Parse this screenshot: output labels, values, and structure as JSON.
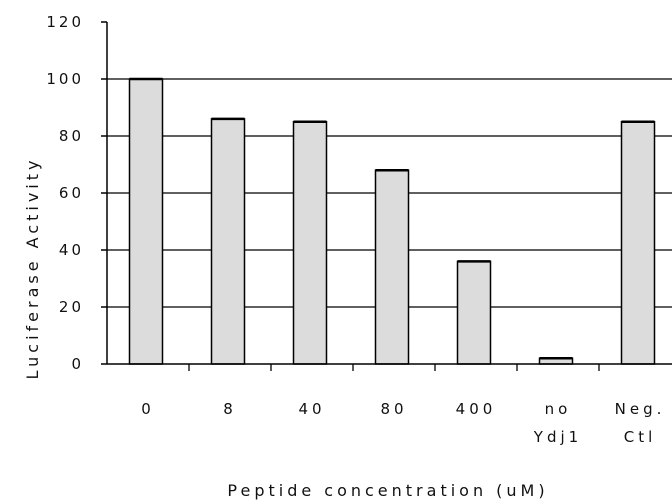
{
  "chart_data": {
    "type": "bar",
    "title": "",
    "xlabel": "Peptide concentration (uM)",
    "ylabel": "Luciferase Activity",
    "categories": [
      [
        "0"
      ],
      [
        "8"
      ],
      [
        "40"
      ],
      [
        "80"
      ],
      [
        "400"
      ],
      [
        "no",
        "Ydj1"
      ],
      [
        "Neg.",
        "Ctl"
      ]
    ],
    "values": [
      100,
      86,
      85,
      68,
      36,
      2,
      85
    ],
    "ylim": [
      0,
      120
    ],
    "yticks": [
      0,
      20,
      40,
      60,
      80,
      100,
      120
    ],
    "grid": true,
    "legend": "none",
    "colors": {
      "bar_fill": "#dcdcdc",
      "bar_stroke": "#000000",
      "gridline": "#000000",
      "axis": "#000000"
    }
  }
}
